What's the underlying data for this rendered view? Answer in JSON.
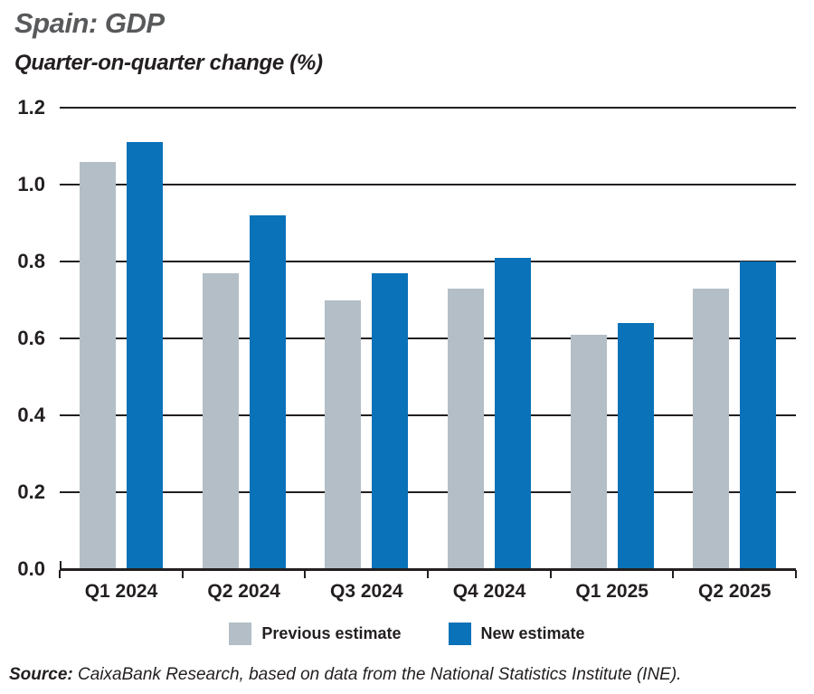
{
  "header": {
    "title": "Spain: GDP",
    "subtitle": "Quarter-on-quarter change (%)"
  },
  "colors": {
    "title": "#58595b",
    "text": "#231f20",
    "grid": "#231f20",
    "previous": "#b3bec6",
    "new": "#0a72b8"
  },
  "chart_data": {
    "type": "bar",
    "title": "Spain: GDP",
    "subtitle": "Quarter-on-quarter change (%)",
    "categories": [
      "Q1 2024",
      "Q2 2024",
      "Q3 2024",
      "Q4 2024",
      "Q1 2025",
      "Q2 2025"
    ],
    "series": [
      {
        "name": "Previous estimate",
        "color": "#b3bec6",
        "values": [
          1.06,
          0.77,
          0.7,
          0.73,
          0.61,
          0.73
        ]
      },
      {
        "name": "New estimate",
        "color": "#0a72b8",
        "values": [
          1.11,
          0.92,
          0.77,
          0.81,
          0.64,
          0.8
        ]
      }
    ],
    "ylim": [
      0.0,
      1.2
    ],
    "yticks": [
      "0.0",
      "0.2",
      "0.4",
      "0.6",
      "0.8",
      "1.0",
      "1.2"
    ],
    "grid": true,
    "legend_position": "bottom"
  },
  "legend": {
    "previous_label": "Previous estimate",
    "new_label": "New estimate"
  },
  "source": {
    "prefix": "Source:",
    "text": " CaixaBank Research, based on data from the National Statistics Institute (INE)."
  }
}
